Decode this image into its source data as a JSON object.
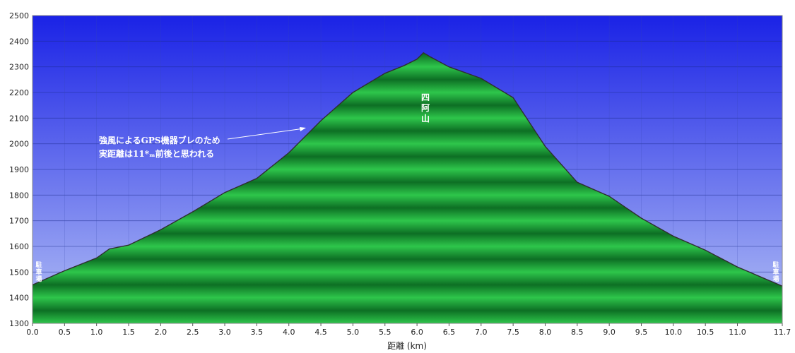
{
  "chart_data": {
    "type": "area",
    "xlabel": "距離 (km)",
    "ylabel": "",
    "xlim": [
      0,
      11.7
    ],
    "ylim": [
      1300,
      2500
    ],
    "x_ticks": [
      0.0,
      0.5,
      1.0,
      1.5,
      2.0,
      2.5,
      3.0,
      3.5,
      4.0,
      4.5,
      5.0,
      5.5,
      6.0,
      6.5,
      7.0,
      7.5,
      8.0,
      8.5,
      9.0,
      9.5,
      10.0,
      10.5,
      11.0,
      11.7
    ],
    "x_tick_labels": [
      "0.0",
      "0.5",
      "1.0",
      "1.5",
      "2.0",
      "2.5",
      "3.0",
      "3.5",
      "4.0",
      "4.5",
      "5.0",
      "5.5",
      "6.0",
      "6.5",
      "7.0",
      "7.5",
      "8.0",
      "8.5",
      "9.0",
      "9.5",
      "10.0",
      "10.5",
      "11.0",
      "11.7"
    ],
    "y_ticks": [
      1300,
      1400,
      1500,
      1600,
      1700,
      1800,
      1900,
      2000,
      2100,
      2200,
      2300,
      2400,
      2500
    ],
    "grid": true,
    "x": [
      0.0,
      0.5,
      1.0,
      1.2,
      1.5,
      2.0,
      2.5,
      3.0,
      3.5,
      4.0,
      4.5,
      5.0,
      5.5,
      5.8,
      6.0,
      6.1,
      6.2,
      6.5,
      7.0,
      7.5,
      8.0,
      8.5,
      9.0,
      9.5,
      10.0,
      10.5,
      11.0,
      11.7
    ],
    "y": [
      1450,
      1505,
      1555,
      1590,
      1605,
      1665,
      1735,
      1810,
      1865,
      1965,
      2090,
      2200,
      2275,
      2305,
      2330,
      2355,
      2340,
      2300,
      2255,
      2180,
      1990,
      1850,
      1795,
      1710,
      1640,
      1585,
      1520,
      1445
    ],
    "annotations": {
      "summit": "四阿山",
      "gps_note_line1": "強風によるGPS機器ブレのため",
      "gps_note_line2": "実距離は11*ₘ前後と思われる",
      "parking_left": "駐車場",
      "parking_right": "駐車場"
    },
    "colors": {
      "sky_top": "#1f2ee8",
      "sky_bottom": "#a9b8f4",
      "fill_dark": "#0b6b22",
      "fill_light": "#2cc44a",
      "outline": "#333333"
    }
  }
}
